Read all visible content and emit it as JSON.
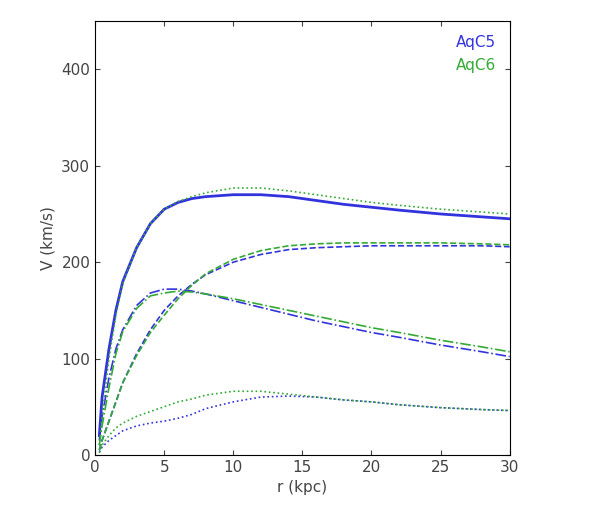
{
  "chart_data": {
    "type": "line",
    "x_label": "r (kpc)",
    "y_label": "V (km/s)",
    "xlim": [
      0,
      30
    ],
    "xticks": [
      0,
      5,
      10,
      15,
      20,
      25,
      30
    ],
    "ylim": [
      0,
      450
    ],
    "yticks": [
      0,
      100,
      200,
      300,
      400
    ],
    "legend": "upper right",
    "x": [
      0.3,
      0.5,
      1,
      1.5,
      2,
      3,
      4,
      5,
      6,
      7,
      8,
      10,
      12,
      14,
      16,
      18,
      20,
      22,
      25,
      28,
      30
    ],
    "series": [
      {
        "name": "AqC5",
        "color": "#3333dd",
        "curves": [
          {
            "line_style": "solid",
            "values": [
              20,
              60,
              110,
              150,
              180,
              215,
              240,
              255,
              262,
              266,
              268,
              270,
              270,
              268,
              264,
              260,
              257,
              254,
              250,
              247,
              245
            ]
          },
          {
            "line_style": "dashed",
            "values": [
              5,
              15,
              35,
              55,
              75,
              105,
              130,
              150,
              165,
              177,
              187,
              200,
              208,
              213,
              215,
              216,
              217,
              217,
              217,
              217,
              216
            ]
          },
          {
            "line_style": "dashdot",
            "values": [
              15,
              40,
              80,
              110,
              130,
              155,
              168,
              172,
              172,
              170,
              167,
              160,
              153,
              146,
              139,
              133,
              127,
              122,
              114,
              107,
              102
            ]
          },
          {
            "line_style": "dotted",
            "values": [
              3,
              8,
              15,
              20,
              25,
              30,
              33,
              35,
              38,
              42,
              48,
              55,
              60,
              61,
              60,
              57,
              55,
              52,
              49,
              47,
              46
            ]
          }
        ]
      },
      {
        "name": "AqC6",
        "color": "#33aa33",
        "curves": [
          {
            "line_style": "dotted",
            "values": [
              10,
              40,
              100,
              145,
              178,
              215,
              240,
              255,
              263,
              268,
              272,
              277,
              277,
              274,
              270,
              266,
              262,
              259,
              255,
              252,
              250
            ]
          },
          {
            "line_style": "dashed",
            "values": [
              5,
              15,
              35,
              55,
              75,
              103,
              127,
              145,
              162,
              176,
              188,
              203,
              212,
              217,
              219,
              220,
              220,
              220,
              220,
              219,
              218
            ]
          },
          {
            "line_style": "dashdot",
            "values": [
              10,
              30,
              70,
              105,
              128,
              152,
              165,
              168,
              170,
              169,
              167,
              162,
              156,
              150,
              144,
              138,
              132,
              127,
              119,
              112,
              107
            ]
          },
          {
            "line_style": "dotted",
            "values": [
              2,
              10,
              20,
              28,
              33,
              40,
              45,
              50,
              55,
              58,
              62,
              66,
              66,
              63,
              60,
              57,
              55,
              52,
              49,
              47,
              46
            ]
          }
        ]
      }
    ]
  }
}
